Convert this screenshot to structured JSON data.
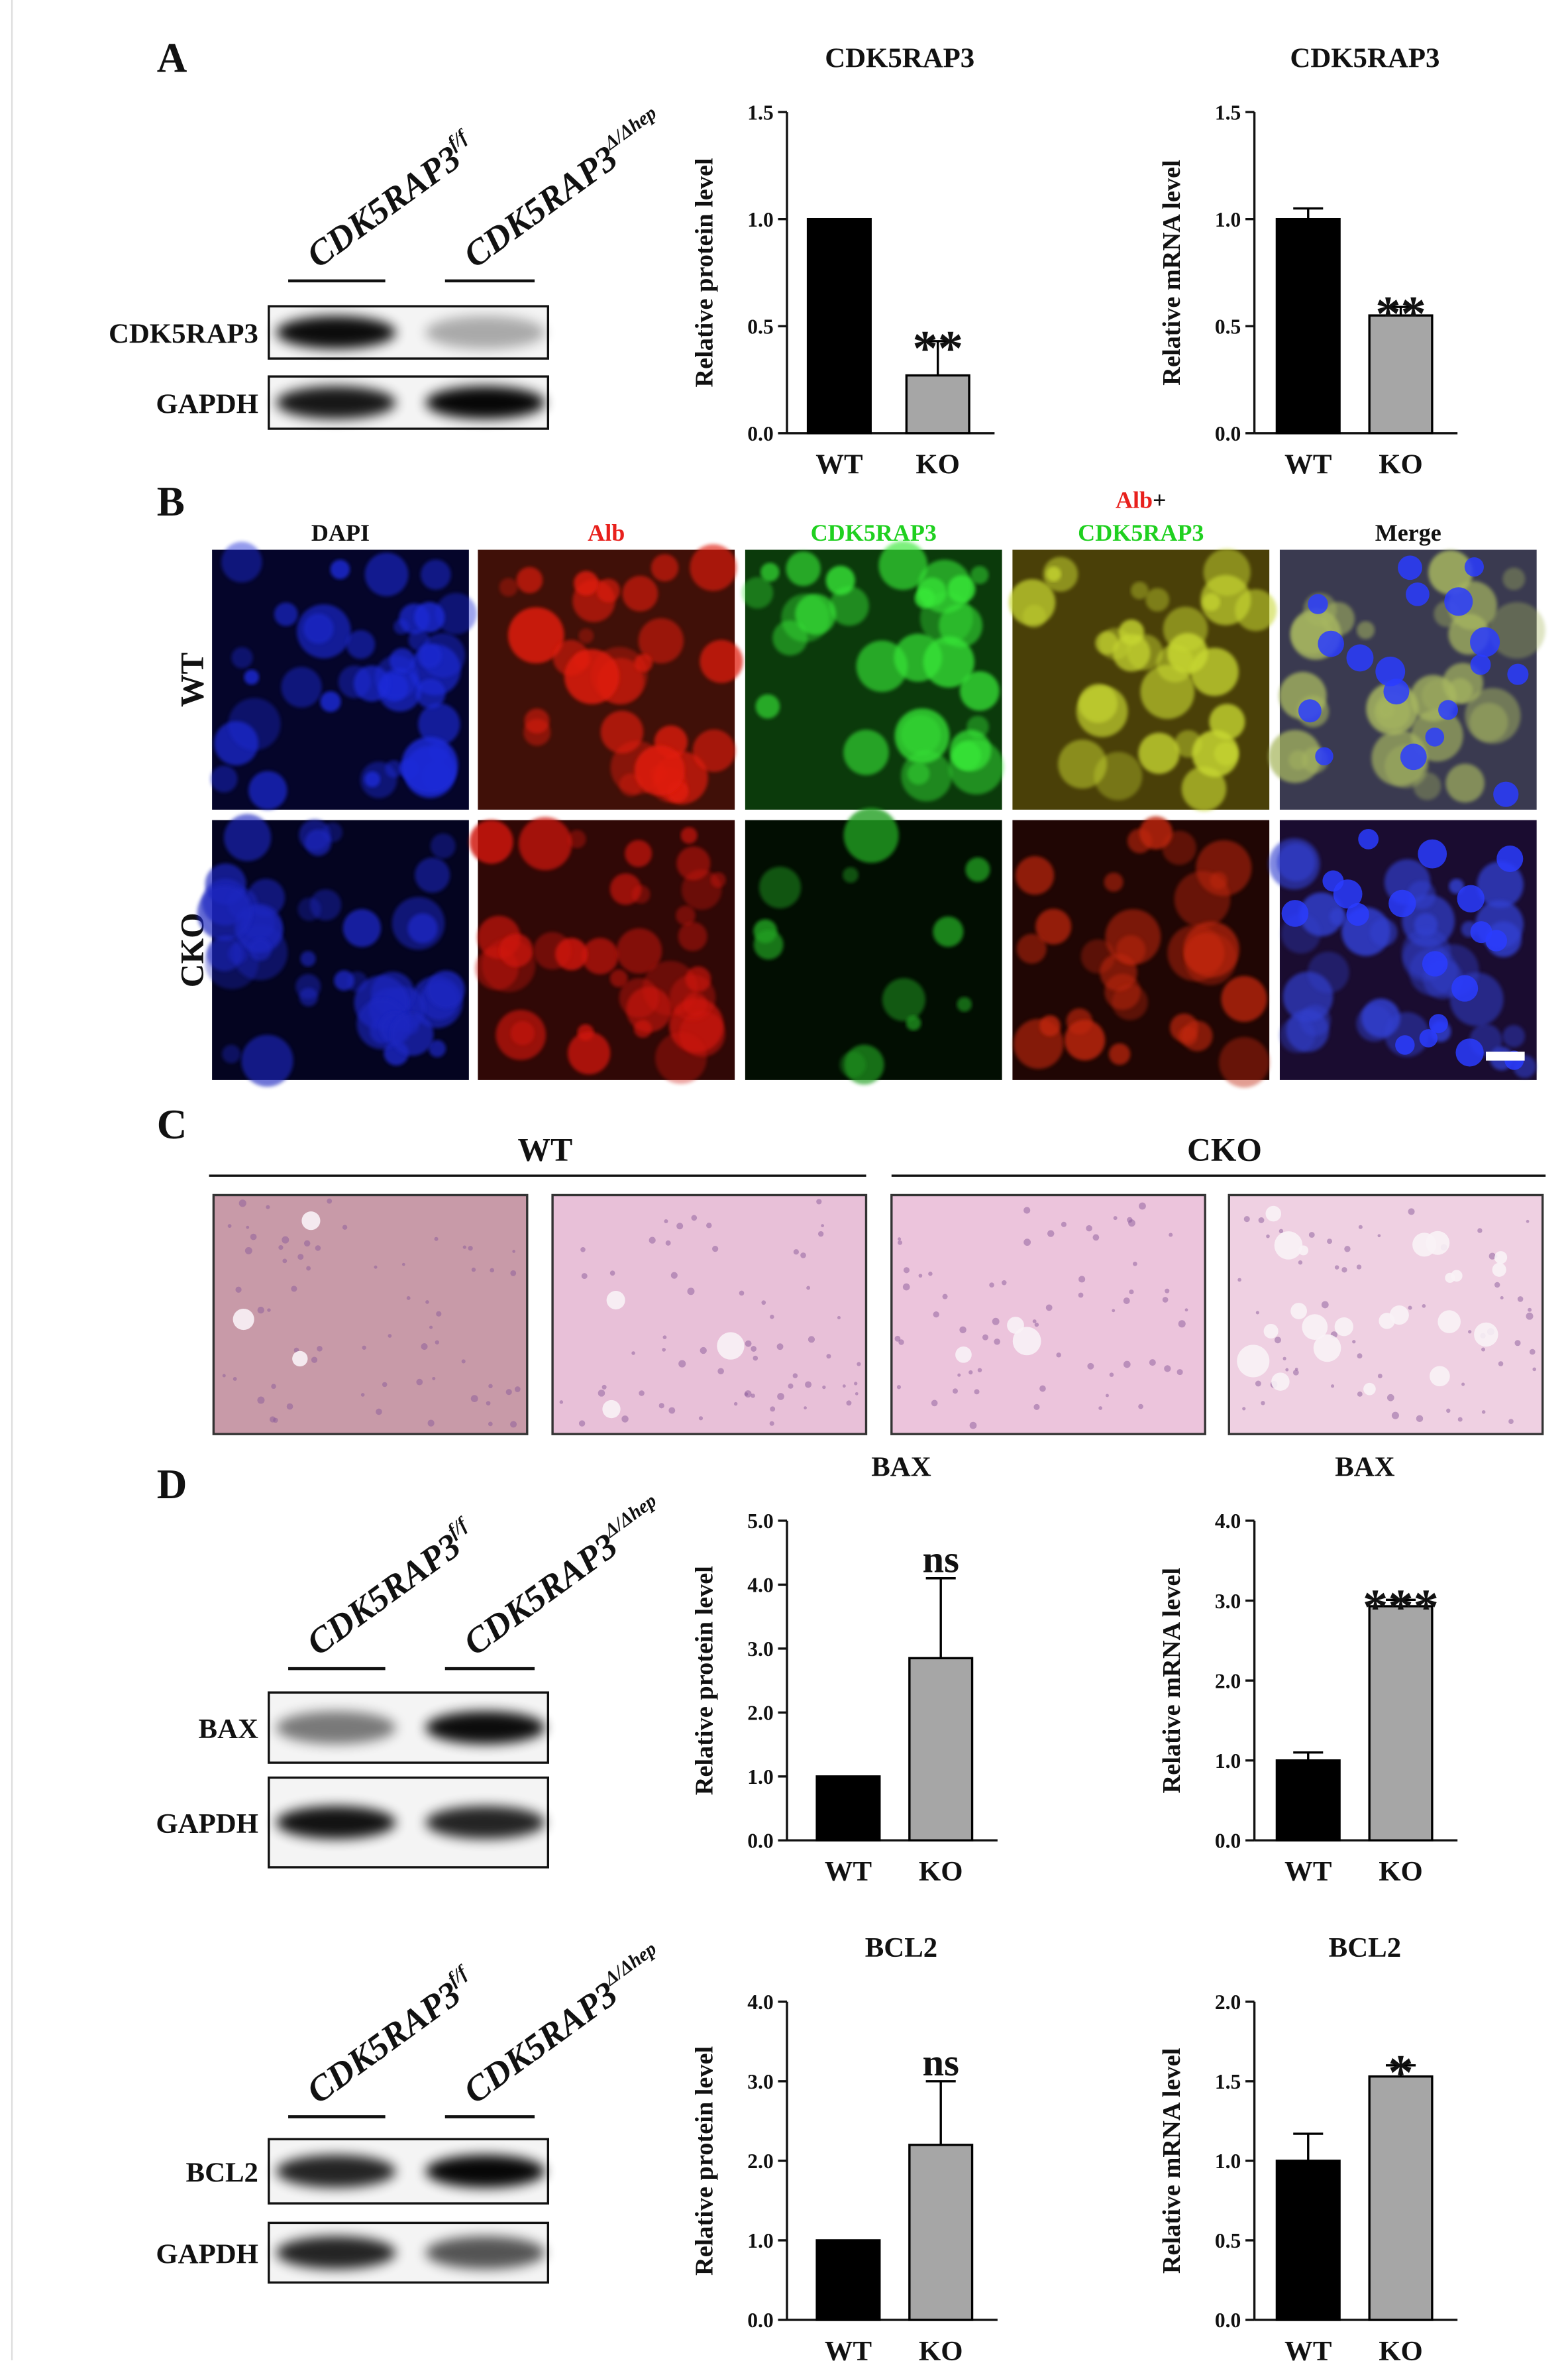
{
  "panel_letters": [
    "A",
    "B",
    "C",
    "D"
  ],
  "blots": [
    {
      "lanes": [
        {
          "gene": "CDK5RAP3",
          "sup": "f/f"
        },
        {
          "gene": "CDK5RAP3",
          "sup": "Δ/Δhep"
        }
      ],
      "rows": [
        "CDK5RAP3",
        "GAPDH"
      ]
    },
    {
      "lanes": [
        {
          "gene": "CDK5RAP3",
          "sup": "f/f"
        },
        {
          "gene": "CDK5RAP3",
          "sup": "Δ/Δhep"
        }
      ],
      "rows": [
        "BAX",
        "GAPDH"
      ]
    },
    {
      "lanes": [
        {
          "gene": "CDK5RAP3",
          "sup": "f/f"
        },
        {
          "gene": "CDK5RAP3",
          "sup": "Δ/Δhep"
        }
      ],
      "rows": [
        "BCL2",
        "GAPDH"
      ]
    }
  ],
  "if_panel": {
    "columns": [
      {
        "lines": [
          [
            {
              "text": "DAPI",
              "color": "#111111"
            }
          ]
        ]
      },
      {
        "lines": [
          [
            {
              "text": "Alb",
              "color": "#e8201c"
            }
          ]
        ]
      },
      {
        "lines": [
          [
            {
              "text": "CDK5RAP3",
              "color": "#1fd01f"
            }
          ]
        ]
      },
      {
        "lines": [
          [
            {
              "text": "Alb",
              "color": "#e8201c"
            },
            {
              "text": "+",
              "color": "#111111"
            }
          ],
          [
            {
              "text": "CDK5RAP3",
              "color": "#1fd01f"
            }
          ]
        ]
      },
      {
        "lines": [
          [
            {
              "text": "Merge",
              "color": "#111111"
            }
          ]
        ]
      }
    ],
    "rows": [
      "WT",
      "CKO"
    ]
  },
  "he_panel": {
    "groups": [
      "WT",
      "CKO"
    ]
  },
  "chart_data": [
    {
      "type": "bar",
      "title": "CDK5RAP3",
      "ylabel": "Relative protein level",
      "categories": [
        "WT",
        "KO"
      ],
      "values": [
        1.0,
        0.27
      ],
      "errors": [
        null,
        0.16
      ],
      "sig_labels": [
        null,
        "**"
      ],
      "colors": [
        "#000000",
        "#a6a6a6"
      ],
      "ylim": [
        0,
        1.5
      ],
      "yticks": [
        {
          "value": 0,
          "label": "0.0"
        },
        0.5,
        {
          "value": 1,
          "label": "1.0"
        },
        1.5
      ]
    },
    {
      "type": "bar",
      "title": "CDK5RAP3",
      "ylabel": "Relative mRNA level",
      "categories": [
        "WT",
        "KO"
      ],
      "values": [
        1.0,
        0.55
      ],
      "errors": [
        0.05,
        0.04
      ],
      "sig_labels": [
        null,
        "**"
      ],
      "colors": [
        "#000000",
        "#a6a6a6"
      ],
      "ylim": [
        0,
        1.5
      ],
      "yticks": [
        {
          "value": 0,
          "label": "0.0"
        },
        0.5,
        {
          "value": 1,
          "label": "1.0"
        },
        1.5
      ]
    },
    {
      "type": "bar",
      "title": "BAX",
      "ylabel": "Relative protein level",
      "categories": [
        "WT",
        "KO"
      ],
      "values": [
        1.0,
        2.85
      ],
      "errors": [
        null,
        1.25
      ],
      "sig_labels": [
        null,
        "ns"
      ],
      "colors": [
        "#000000",
        "#a6a6a6"
      ],
      "ylim": [
        0,
        5
      ],
      "yticks": [
        {
          "value": 0,
          "label": "0.0"
        },
        {
          "value": 1,
          "label": "1.0"
        },
        {
          "value": 2,
          "label": "2.0"
        },
        {
          "value": 3,
          "label": "3.0"
        },
        {
          "value": 4,
          "label": "4.0"
        },
        {
          "value": 5,
          "label": "5.0"
        }
      ]
    },
    {
      "type": "bar",
      "title": "BAX",
      "ylabel": "Relative mRNA level",
      "categories": [
        "WT",
        "KO"
      ],
      "values": [
        1.0,
        2.93
      ],
      "errors": [
        0.1,
        0.08
      ],
      "sig_labels": [
        null,
        "***"
      ],
      "colors": [
        "#000000",
        "#a6a6a6"
      ],
      "ylim": [
        0,
        4
      ],
      "yticks": [
        {
          "value": 0,
          "label": "0.0"
        },
        {
          "value": 1,
          "label": "1.0"
        },
        {
          "value": 2,
          "label": "2.0"
        },
        {
          "value": 3,
          "label": "3.0"
        },
        {
          "value": 4,
          "label": "4.0"
        }
      ]
    },
    {
      "type": "bar",
      "title": "BCL2",
      "ylabel": "Relative protein level",
      "categories": [
        "WT",
        "KO"
      ],
      "values": [
        1.0,
        2.2
      ],
      "errors": [
        null,
        0.8
      ],
      "sig_labels": [
        null,
        "ns"
      ],
      "colors": [
        "#000000",
        "#a6a6a6"
      ],
      "ylim": [
        0,
        4
      ],
      "yticks": [
        {
          "value": 0,
          "label": "0.0"
        },
        {
          "value": 1,
          "label": "1.0"
        },
        {
          "value": 2,
          "label": "2.0"
        },
        {
          "value": 3,
          "label": "3.0"
        },
        {
          "value": 4,
          "label": "4.0"
        }
      ]
    },
    {
      "type": "bar",
      "title": "BCL2",
      "ylabel": "Relative mRNA level",
      "categories": [
        "WT",
        "KO"
      ],
      "values": [
        1.0,
        1.53
      ],
      "errors": [
        0.17,
        0.07
      ],
      "sig_labels": [
        null,
        "*"
      ],
      "colors": [
        "#000000",
        "#a6a6a6"
      ],
      "ylim": [
        0,
        2
      ],
      "yticks": [
        {
          "value": 0,
          "label": "0.0"
        },
        0.5,
        {
          "value": 1,
          "label": "1.0"
        },
        1.5,
        {
          "value": 2,
          "label": "2.0"
        }
      ]
    }
  ]
}
